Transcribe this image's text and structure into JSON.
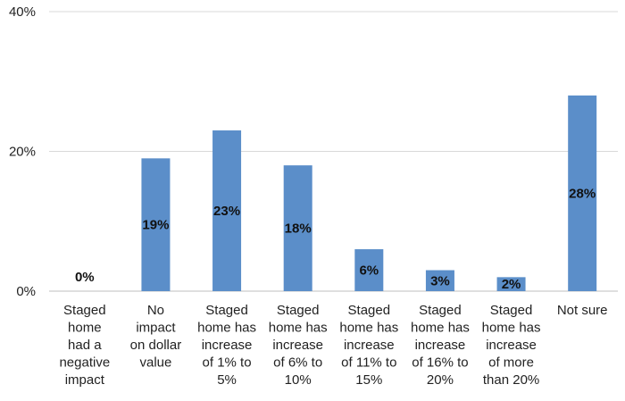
{
  "chart_data": {
    "type": "bar",
    "categories": [
      [
        "Staged",
        "home",
        "had a",
        "negative",
        "impact"
      ],
      [
        "No",
        "impact",
        "on dollar",
        "value"
      ],
      [
        "Staged",
        "home has",
        "increase",
        "of 1% to",
        "5%"
      ],
      [
        "Staged",
        "home has",
        "increase",
        "of 6% to",
        "10%"
      ],
      [
        "Staged",
        "home has",
        "increase",
        "of 11% to",
        "15%"
      ],
      [
        "Staged",
        "home has",
        "increase",
        "of 16% to",
        "20%"
      ],
      [
        "Staged",
        "home has",
        "increase",
        "of more",
        "than 20%"
      ],
      [
        "Not sure"
      ]
    ],
    "values": [
      0,
      19,
      23,
      18,
      6,
      3,
      2,
      28
    ],
    "data_labels": [
      "0%",
      "19%",
      "23%",
      "18%",
      "6%",
      "3%",
      "2%",
      "28%"
    ],
    "y_ticks": [
      0,
      20,
      40
    ],
    "y_tick_labels": [
      "0%",
      "20%",
      "40%"
    ],
    "ylim": [
      0,
      40
    ],
    "grid": true,
    "bar_color": "#5b8ec9",
    "grid_color": "#d9d9d9",
    "title": "",
    "xlabel": "",
    "ylabel": ""
  }
}
